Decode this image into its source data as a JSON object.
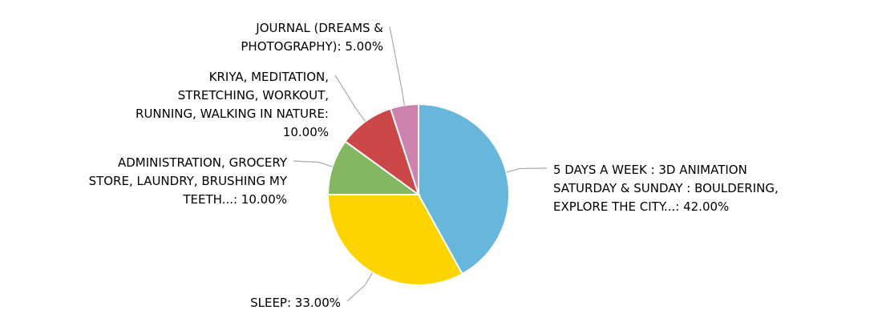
{
  "chart_data": {
    "type": "pie",
    "values": [
      42,
      33,
      10,
      10,
      5
    ],
    "value_labels": [
      [
        "5 DAYS A WEEK : 3D ANIMATION",
        "SATURDAY & SUNDAY : BOULDERING,",
        "EXPLORE THE CITY...: 42.00%"
      ],
      [
        "SLEEP: 33.00%"
      ],
      [
        "ADMINISTRATION, GROCERY",
        "STORE, LAUNDRY, BRUSHING MY",
        "TEETH...: 10.00%"
      ],
      [
        "KRIYA, MEDITATION,",
        "STRETCHING, WORKOUT,",
        "RUNNING, WALKING IN NATURE:",
        "10.00%"
      ],
      [
        "JOURNAL (DREAMS &",
        "PHOTOGRAPHY): 5.00%"
      ]
    ],
    "colors": [
      "#67b7dc",
      "#fdd400",
      "#84b761",
      "#cc4748",
      "#cd82ad"
    ]
  }
}
